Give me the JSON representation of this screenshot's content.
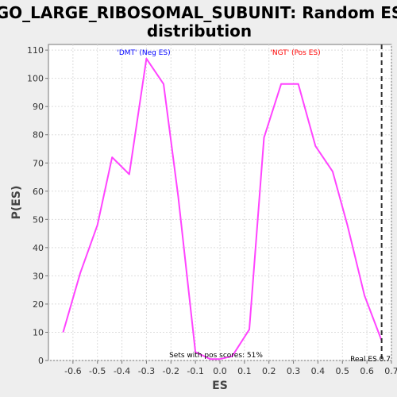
{
  "chart_data": {
    "type": "line",
    "title_line1": "GO_LARGE_RIBOSOMAL_SUBUNIT: Random ES",
    "title_line2": "distribution",
    "xlabel": "ES",
    "ylabel": "P(ES)",
    "xlim": [
      -0.7,
      0.7
    ],
    "ylim": [
      0,
      112
    ],
    "x_ticks": [
      -0.6,
      -0.5,
      -0.4,
      -0.3,
      -0.2,
      -0.1,
      0.0,
      0.1,
      0.2,
      0.3,
      0.4,
      0.5,
      0.6,
      0.7
    ],
    "y_ticks": [
      0,
      10,
      20,
      30,
      40,
      50,
      60,
      70,
      80,
      90,
      100,
      110
    ],
    "grid": true,
    "series": [
      {
        "color": "#ff44ff",
        "x": [
          -0.64,
          -0.57,
          -0.5,
          -0.44,
          -0.37,
          -0.3,
          -0.23,
          -0.17,
          -0.1,
          -0.04,
          0.0,
          0.05,
          0.12,
          0.18,
          0.25,
          0.32,
          0.39,
          0.46,
          0.52,
          0.59,
          0.66
        ],
        "y": [
          10,
          31,
          48,
          72,
          66,
          107,
          98,
          58,
          3,
          0.5,
          0.5,
          1.5,
          11,
          79,
          98,
          98,
          76,
          67,
          48,
          23,
          7
        ]
      }
    ],
    "annotations": {
      "neg_label": "'DMT' (Neg ES)",
      "neg_color": "#0000ff",
      "pos_label": "'NGT' (Pos ES)",
      "pos_color": "#ff0000",
      "pos_scores": "Sets with pos scores: 51%",
      "real_es_label": "Real ES 0.7",
      "real_es_value": 0.66
    }
  }
}
